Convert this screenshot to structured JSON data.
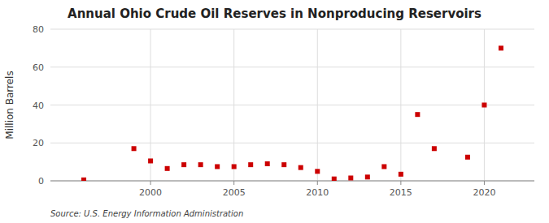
{
  "chart_data": {
    "type": "scatter",
    "title": "Annual Ohio Crude Oil Reserves in Nonproducing Reservoirs",
    "ylabel": "Million Barrels",
    "source": "Source: U.S. Energy Information Administration",
    "x": [
      1996,
      1999,
      2000,
      2001,
      2002,
      2003,
      2004,
      2005,
      2006,
      2007,
      2008,
      2009,
      2010,
      2011,
      2012,
      2013,
      2014,
      2015,
      2016,
      2017,
      2019,
      2020,
      2021
    ],
    "values": [
      0.5,
      17,
      10.5,
      6.5,
      8.5,
      8.5,
      7.5,
      7.5,
      8.5,
      9,
      8.5,
      7,
      5,
      1,
      1.5,
      2,
      7.5,
      3.5,
      35,
      17,
      12.5,
      40,
      70
    ],
    "color": "#cc0000",
    "marker": "square",
    "xlim": [
      1994,
      2023
    ],
    "ylim": [
      0,
      80
    ],
    "xticks": [
      2000,
      2005,
      2010,
      2015,
      2020
    ],
    "yticks": [
      0,
      20,
      40,
      60,
      80
    ],
    "grid": true
  }
}
